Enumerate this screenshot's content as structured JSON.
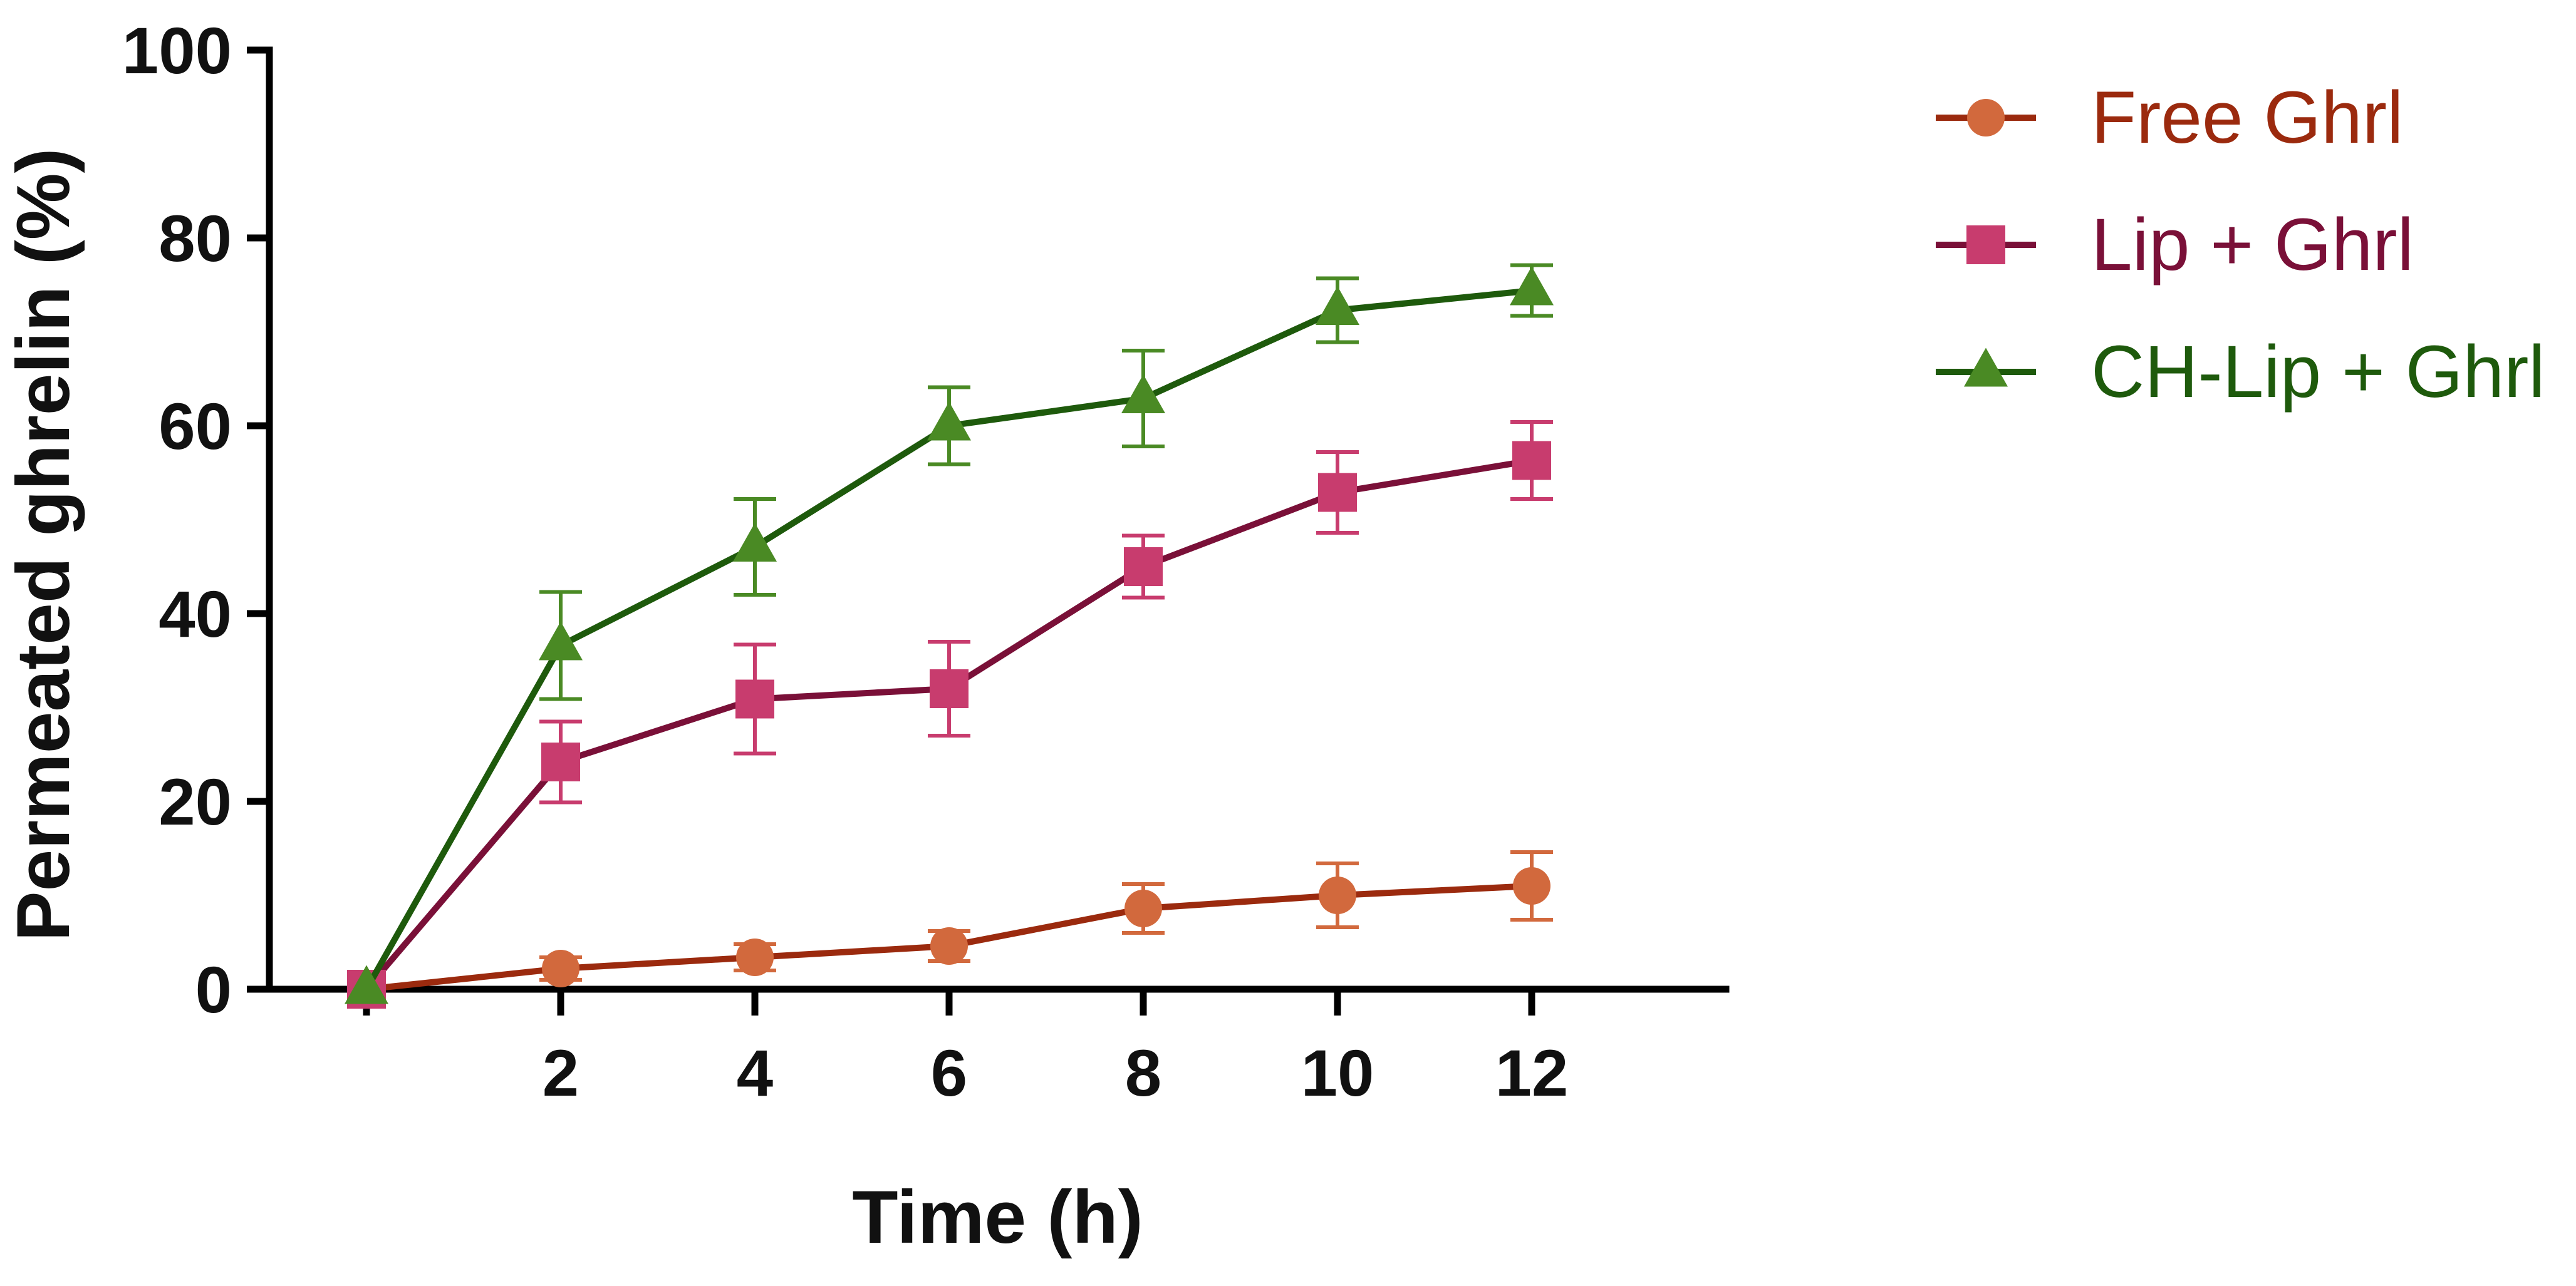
{
  "chart_data": {
    "type": "line",
    "title": "",
    "xlabel": "Time (h)",
    "ylabel": "Permeated ghrelin (%)",
    "xlim": [
      -1,
      14
    ],
    "ylim": [
      0,
      100
    ],
    "xticks": [
      0,
      2,
      4,
      6,
      8,
      10,
      12
    ],
    "xtick_labels": [
      "",
      "2",
      "4",
      "6",
      "8",
      "10",
      "12"
    ],
    "yticks": [
      0,
      20,
      40,
      60,
      80,
      100
    ],
    "ytick_labels": [
      "0",
      "20",
      "40",
      "60",
      "80",
      "100"
    ],
    "x": [
      0,
      2,
      4,
      6,
      8,
      10,
      12
    ],
    "series": [
      {
        "name": "Free Ghrl",
        "marker": "circle",
        "color": "#D2693D",
        "line_color": "#9B2A0E",
        "label_color": "#9B2A0E",
        "values": [
          0,
          2.2,
          3.4,
          4.6,
          8.6,
          10.0,
          11.0
        ],
        "errors": [
          0,
          1.2,
          1.4,
          1.6,
          2.6,
          3.4,
          3.6
        ]
      },
      {
        "name": "Lip + Ghrl",
        "marker": "square",
        "color": "#C83C6E",
        "line_color": "#7A1038",
        "label_color": "#7A1038",
        "values": [
          0,
          24.2,
          30.9,
          32.0,
          45.0,
          52.9,
          56.3
        ],
        "errors": [
          0,
          4.3,
          5.8,
          5.0,
          3.3,
          4.3,
          4.1
        ]
      },
      {
        "name": "CH-Lip + Ghrl",
        "marker": "triangle",
        "color": "#4A8A24",
        "line_color": "#1E5A0C",
        "label_color": "#1E5A0C",
        "values": [
          0,
          36.6,
          47.1,
          60.0,
          62.9,
          72.3,
          74.4
        ],
        "errors": [
          0,
          5.7,
          5.1,
          4.1,
          5.1,
          3.4,
          2.7
        ]
      }
    ],
    "legend_position": "right",
    "grid": false
  }
}
